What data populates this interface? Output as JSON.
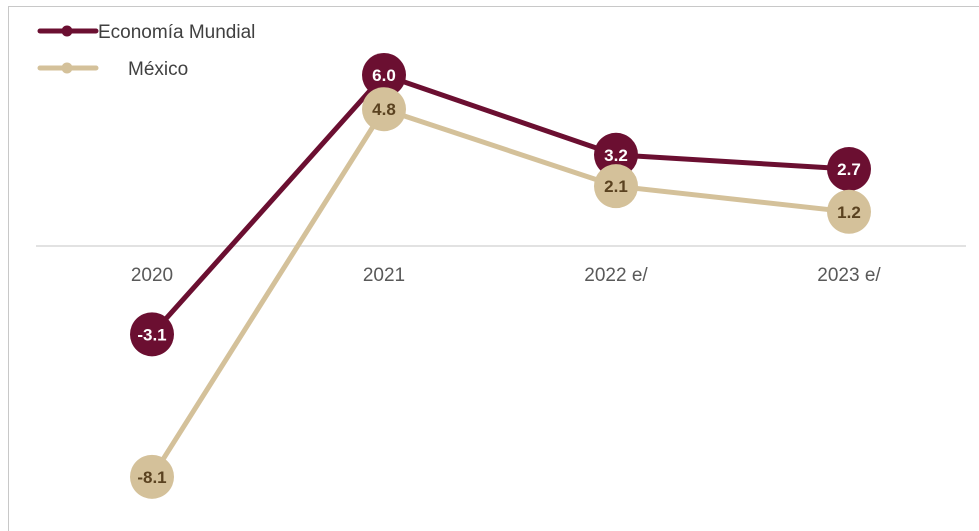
{
  "chart_data": {
    "type": "line",
    "categories": [
      "2020",
      "2021",
      "2022 e/",
      "2023 e/"
    ],
    "series": [
      {
        "name": "Economía Mundial",
        "values": [
          -3.1,
          6.0,
          3.2,
          2.7
        ],
        "labels": [
          "-3.1",
          "6.0",
          "3.2",
          "2.7"
        ]
      },
      {
        "name": "México",
        "values": [
          -8.1,
          4.8,
          2.1,
          1.2
        ],
        "labels": [
          "-8.1",
          "4.8",
          "2.1",
          "1.2"
        ]
      }
    ],
    "title": "",
    "xlabel": "",
    "ylabel": "",
    "ylim": [
      -9,
      8
    ],
    "grid": false,
    "legend_position": "top-left"
  },
  "colors": {
    "series_0": "#6b0f31",
    "series_1": "#d4c19a",
    "label_on_dark": "#ffffff",
    "label_on_light": "#5a4220",
    "axis": "#d9d9d9",
    "tick_text": "#595959"
  }
}
